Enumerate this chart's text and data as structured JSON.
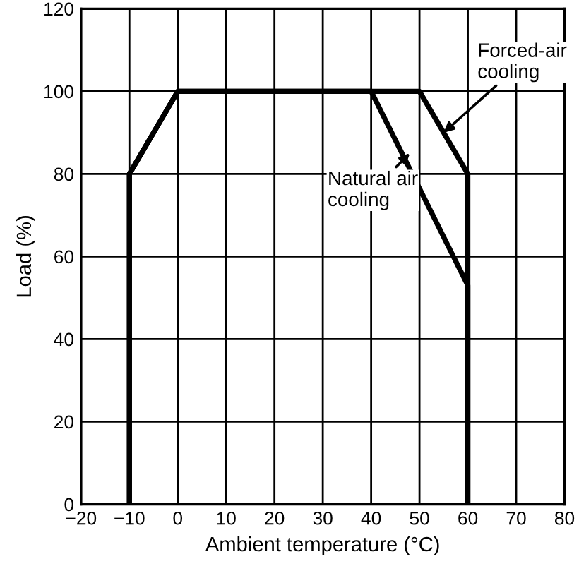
{
  "chart_data": {
    "type": "line",
    "xlabel": "Ambient temperature (°C)",
    "ylabel": "Load (%)",
    "xlim": [
      -20,
      80
    ],
    "ylim": [
      0,
      120
    ],
    "xticks": [
      -20,
      -10,
      0,
      10,
      20,
      30,
      40,
      50,
      60,
      70,
      80
    ],
    "yticks": [
      0,
      20,
      40,
      60,
      80,
      100,
      120
    ],
    "grid": true,
    "legend": false,
    "marker": "none",
    "line_style": "solid",
    "series": [
      {
        "color": "#000000",
        "x": [
          -10,
          -10,
          0,
          50,
          60,
          60
        ],
        "values": [
          0,
          80,
          100,
          100,
          80,
          0
        ]
      },
      {
        "color": "#000000",
        "x": [
          -10,
          -10,
          0,
          40,
          60,
          60
        ],
        "values": [
          0,
          80,
          100,
          100,
          53,
          0
        ]
      }
    ],
    "annotations": [
      {
        "text": "Forced-air\ncooling",
        "x": 55,
        "y": 90
      },
      {
        "text": "Natural air\ncooling",
        "x": 48,
        "y": 85
      }
    ]
  }
}
